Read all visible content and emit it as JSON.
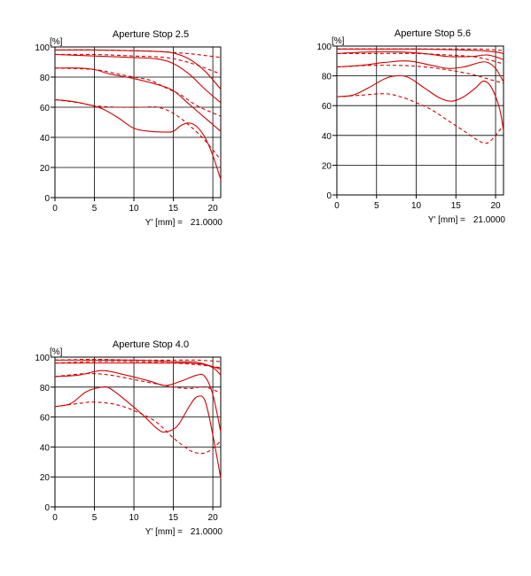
{
  "chart_data": [
    {
      "type": "line",
      "title": "Aperture Stop 2.5",
      "ylabel": "[%]",
      "xlabel": "Y' [mm] =",
      "x_value": "21.0000",
      "xlim": [
        0,
        21
      ],
      "ylim": [
        0,
        100
      ],
      "xticks": [
        "0",
        "5",
        "10",
        "15",
        "20"
      ],
      "yticks": [
        "0",
        "20",
        "40",
        "60",
        "80",
        "100"
      ],
      "grid": true,
      "colors": {
        "curve": "#d10000"
      },
      "series": [
        {
          "style": "solid",
          "points": [
            [
              0,
              98
            ],
            [
              5,
              98
            ],
            [
              10,
              97.5
            ],
            [
              13,
              97
            ],
            [
              15,
              96
            ],
            [
              17,
              92
            ],
            [
              19,
              84
            ],
            [
              21,
              72
            ]
          ]
        },
        {
          "style": "dashed",
          "points": [
            [
              0,
              98
            ],
            [
              5,
              98
            ],
            [
              10,
              97.5
            ],
            [
              13,
              97
            ],
            [
              16,
              96
            ],
            [
              18,
              95
            ],
            [
              21,
              93
            ]
          ]
        },
        {
          "style": "solid",
          "points": [
            [
              0,
              95
            ],
            [
              5,
              94
            ],
            [
              10,
              93
            ],
            [
              13,
              92
            ],
            [
              15,
              89
            ],
            [
              17,
              82
            ],
            [
              19,
              72
            ],
            [
              21,
              63
            ]
          ]
        },
        {
          "style": "dashed",
          "points": [
            [
              0,
              95
            ],
            [
              5,
              95
            ],
            [
              10,
              94
            ],
            [
              14,
              93
            ],
            [
              16,
              91
            ],
            [
              18,
              88
            ],
            [
              21,
              82
            ]
          ]
        },
        {
          "style": "solid",
          "points": [
            [
              0,
              86
            ],
            [
              3,
              86
            ],
            [
              5,
              85
            ],
            [
              7,
              82
            ],
            [
              10,
              79
            ],
            [
              13,
              75
            ],
            [
              15,
              71
            ],
            [
              17,
              62
            ],
            [
              19,
              53
            ],
            [
              21,
              44
            ]
          ]
        },
        {
          "style": "dashed",
          "points": [
            [
              0,
              86
            ],
            [
              5,
              85
            ],
            [
              8,
              82
            ],
            [
              10,
              80
            ],
            [
              12,
              78
            ],
            [
              14,
              73
            ],
            [
              16,
              68
            ],
            [
              18,
              61
            ],
            [
              21,
              54
            ]
          ]
        },
        {
          "style": "solid",
          "points": [
            [
              0,
              65
            ],
            [
              2,
              64
            ],
            [
              4,
              62
            ],
            [
              6,
              59
            ],
            [
              8,
              53
            ],
            [
              10,
              46
            ],
            [
              12,
              44
            ],
            [
              14,
              43.5
            ],
            [
              15,
              44
            ],
            [
              16,
              48
            ],
            [
              17,
              49.5
            ],
            [
              18,
              47
            ],
            [
              19,
              40
            ],
            [
              20,
              28
            ],
            [
              21,
              12
            ]
          ]
        },
        {
          "style": "dashed",
          "points": [
            [
              0,
              65
            ],
            [
              3,
              63
            ],
            [
              5,
              61
            ],
            [
              8,
              60
            ],
            [
              11,
              60
            ],
            [
              13,
              60
            ],
            [
              15,
              56
            ],
            [
              17,
              48
            ],
            [
              19,
              38
            ],
            [
              21,
              25
            ]
          ]
        }
      ]
    },
    {
      "type": "line",
      "title": "Aperture Stop 5.6",
      "ylabel": "[%]",
      "xlabel": "Y' [mm] =",
      "x_value": "21.0000",
      "xlim": [
        0,
        21
      ],
      "ylim": [
        0,
        100
      ],
      "xticks": [
        "0",
        "5",
        "10",
        "15",
        "20"
      ],
      "yticks": [
        "0",
        "20",
        "40",
        "60",
        "80",
        "100"
      ],
      "grid": true,
      "colors": {
        "curve": "#d10000"
      },
      "series": [
        {
          "style": "solid",
          "points": [
            [
              0,
              98
            ],
            [
              5,
              98
            ],
            [
              10,
              98
            ],
            [
              15,
              97.5
            ],
            [
              18,
              97
            ],
            [
              20,
              96
            ],
            [
              21,
              95
            ]
          ]
        },
        {
          "style": "dashed",
          "points": [
            [
              0,
              98
            ],
            [
              5,
              98
            ],
            [
              10,
              98
            ],
            [
              15,
              98
            ],
            [
              18,
              98
            ],
            [
              21,
              97
            ]
          ]
        },
        {
          "style": "solid",
          "points": [
            [
              0,
              95
            ],
            [
              4,
              96
            ],
            [
              8,
              96
            ],
            [
              11,
              95
            ],
            [
              14,
              93
            ],
            [
              17,
              93
            ],
            [
              19,
              94
            ],
            [
              21,
              91
            ]
          ]
        },
        {
          "style": "dashed",
          "points": [
            [
              0,
              95
            ],
            [
              5,
              95
            ],
            [
              10,
              95
            ],
            [
              14,
              94
            ],
            [
              17,
              93
            ],
            [
              19,
              91
            ],
            [
              21,
              88
            ]
          ]
        },
        {
          "style": "solid",
          "points": [
            [
              0,
              86
            ],
            [
              3,
              87
            ],
            [
              6,
              89
            ],
            [
              9,
              90
            ],
            [
              12,
              87
            ],
            [
              14,
              85
            ],
            [
              16,
              86
            ],
            [
              18,
              89
            ],
            [
              19,
              89
            ],
            [
              20,
              85
            ],
            [
              21,
              76
            ]
          ]
        },
        {
          "style": "dashed",
          "points": [
            [
              0,
              86
            ],
            [
              4,
              87
            ],
            [
              8,
              87
            ],
            [
              11,
              86
            ],
            [
              14,
              84
            ],
            [
              17,
              81
            ],
            [
              19,
              78
            ],
            [
              21,
              75
            ]
          ]
        },
        {
          "style": "solid",
          "points": [
            [
              0,
              66
            ],
            [
              2,
              67
            ],
            [
              4,
              72
            ],
            [
              6,
              78
            ],
            [
              7.5,
              80
            ],
            [
              9,
              79
            ],
            [
              11,
              72
            ],
            [
              13,
              65
            ],
            [
              14.5,
              63
            ],
            [
              16,
              66
            ],
            [
              17.5,
              72
            ],
            [
              18.5,
              76.5
            ],
            [
              19.5,
              72
            ],
            [
              20.5,
              58
            ],
            [
              21,
              43
            ]
          ]
        },
        {
          "style": "dashed",
          "points": [
            [
              0,
              66
            ],
            [
              3,
              67
            ],
            [
              6,
              68
            ],
            [
              8,
              66
            ],
            [
              10,
              62
            ],
            [
              12,
              57
            ],
            [
              14,
              50
            ],
            [
              16,
              43
            ],
            [
              18,
              36
            ],
            [
              19,
              35
            ],
            [
              20,
              40
            ],
            [
              21,
              47
            ]
          ]
        }
      ]
    },
    {
      "type": "line",
      "title": "Aperture Stop 4.0",
      "ylabel": "[%]",
      "xlabel": "Y' [mm] =",
      "x_value": "21.0000",
      "xlim": [
        0,
        21
      ],
      "ylim": [
        0,
        100
      ],
      "xticks": [
        "0",
        "5",
        "10",
        "15",
        "20"
      ],
      "yticks": [
        "0",
        "20",
        "40",
        "60",
        "80",
        "100"
      ],
      "grid": true,
      "colors": {
        "curve": "#d10000"
      },
      "series": [
        {
          "style": "solid",
          "points": [
            [
              0,
              98
            ],
            [
              5,
              98
            ],
            [
              10,
              98
            ],
            [
              15,
              97
            ],
            [
              18,
              96.5
            ],
            [
              20,
              93
            ],
            [
              21,
              88
            ]
          ]
        },
        {
          "style": "dashed",
          "points": [
            [
              0,
              98
            ],
            [
              5,
              98.5
            ],
            [
              10,
              98
            ],
            [
              15,
              98
            ],
            [
              18,
              98
            ],
            [
              21,
              97
            ]
          ]
        },
        {
          "style": "solid",
          "points": [
            [
              0,
              96
            ],
            [
              4,
              96
            ],
            [
              8,
              96
            ],
            [
              12,
              96
            ],
            [
              15,
              96
            ],
            [
              17,
              96
            ],
            [
              19,
              95
            ],
            [
              21,
              92
            ]
          ]
        },
        {
          "style": "dashed",
          "points": [
            [
              0,
              96
            ],
            [
              5,
              97
            ],
            [
              10,
              97
            ],
            [
              15,
              96
            ],
            [
              18,
              95
            ],
            [
              21,
              93
            ]
          ]
        },
        {
          "style": "solid",
          "points": [
            [
              0,
              87
            ],
            [
              3,
              88
            ],
            [
              6,
              91
            ],
            [
              9,
              88
            ],
            [
              12,
              84
            ],
            [
              14,
              81
            ],
            [
              16,
              84
            ],
            [
              18,
              88
            ],
            [
              19,
              87
            ],
            [
              20,
              75
            ],
            [
              21,
              50
            ]
          ]
        },
        {
          "style": "dashed",
          "points": [
            [
              0,
              87
            ],
            [
              4,
              89
            ],
            [
              7,
              88
            ],
            [
              10,
              85
            ],
            [
              13,
              82
            ],
            [
              15,
              80
            ],
            [
              17,
              79
            ],
            [
              19,
              80
            ],
            [
              21,
              76
            ]
          ]
        },
        {
          "style": "solid",
          "points": [
            [
              0,
              67
            ],
            [
              2,
              69
            ],
            [
              4,
              77
            ],
            [
              6,
              80
            ],
            [
              7,
              79
            ],
            [
              9,
              71
            ],
            [
              11,
              62
            ],
            [
              13,
              52
            ],
            [
              14,
              50
            ],
            [
              15.5,
              54
            ],
            [
              17,
              67
            ],
            [
              18,
              73.5
            ],
            [
              19,
              71
            ],
            [
              20,
              48
            ],
            [
              21,
              19
            ]
          ]
        },
        {
          "style": "dashed",
          "points": [
            [
              0,
              67
            ],
            [
              3,
              69
            ],
            [
              5,
              70
            ],
            [
              8,
              68
            ],
            [
              11,
              62
            ],
            [
              13,
              56
            ],
            [
              15,
              46
            ],
            [
              17,
              38
            ],
            [
              18,
              36
            ],
            [
              19,
              36
            ],
            [
              20,
              39
            ],
            [
              21,
              44
            ]
          ]
        }
      ]
    }
  ]
}
